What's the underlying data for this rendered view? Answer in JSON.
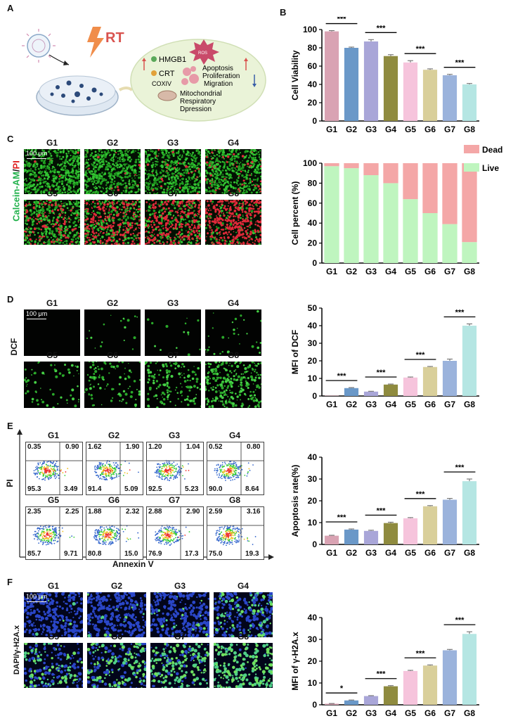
{
  "panels": {
    "A": "A",
    "B": "B",
    "C": "C",
    "D": "D",
    "E": "E",
    "F": "F"
  },
  "schematic": {
    "rt": "RT",
    "hmgb1": "HMGB1",
    "crt": "CRT",
    "coxiv": "COXIV",
    "ros": "ROS",
    "effects": [
      "Apoptosis",
      "Proliferation",
      "Migration"
    ],
    "mito": [
      "Mitochondrial",
      "Respiratory",
      "Dpression"
    ]
  },
  "groups": [
    "G1",
    "G2",
    "G3",
    "G4",
    "G5",
    "G6",
    "G7",
    "G8"
  ],
  "scale_bar": "100 μm",
  "stain_c": {
    "green": "Calcein-AM",
    "sep": "/",
    "red": "PI"
  },
  "stain_d": "DCF",
  "stain_f": "DAPI/γ-H2A.x",
  "flow": {
    "ylabel": "PI",
    "xlabel": "Annexin V",
    "quadrants": [
      [
        "0.35",
        "0.90",
        "95.3",
        "3.49"
      ],
      [
        "1.62",
        "1.90",
        "91.4",
        "5.09"
      ],
      [
        "1.20",
        "1.04",
        "92.5",
        "5.23"
      ],
      [
        "0.52",
        "0.80",
        "90.0",
        "8.64"
      ],
      [
        "2.35",
        "2.25",
        "85.7",
        "9.71"
      ],
      [
        "1.88",
        "2.32",
        "80.8",
        "15.0"
      ],
      [
        "2.88",
        "2.90",
        "76.9",
        "17.3"
      ],
      [
        "2.59",
        "3.16",
        "75.0",
        "19.3"
      ]
    ]
  },
  "colors": [
    "#d9a3b3",
    "#6a98c8",
    "#a9a6d8",
    "#8f8b3f",
    "#f6c4dc",
    "#d9cf9a",
    "#9bb3dc",
    "#b5e6e3"
  ],
  "sig": {
    "three": "***",
    "one": "*"
  },
  "chart_data": [
    {
      "id": "B",
      "type": "bar",
      "categories": [
        "G1",
        "G2",
        "G3",
        "G4",
        "G5",
        "G6",
        "G7",
        "G8"
      ],
      "values": [
        98,
        80,
        87,
        71,
        64,
        56,
        50,
        40
      ],
      "errors": [
        0.8,
        0.8,
        2,
        1.5,
        2,
        1,
        1,
        1
      ],
      "ylabel": "Cell Viability",
      "ylim": [
        0,
        100
      ],
      "yticks": [
        0,
        20,
        40,
        60,
        80,
        100
      ],
      "sig": [
        [
          0,
          1,
          "***"
        ],
        [
          2,
          3,
          "***"
        ],
        [
          4,
          5,
          "***"
        ],
        [
          6,
          7,
          "***"
        ]
      ]
    },
    {
      "id": "C",
      "type": "bar",
      "stacked": true,
      "categories": [
        "G1",
        "G2",
        "G3",
        "G4",
        "G5",
        "G6",
        "G7",
        "G8"
      ],
      "series": [
        {
          "name": "Live",
          "values": [
            97,
            95,
            88,
            80,
            64,
            50,
            39,
            21
          ]
        },
        {
          "name": "Dead",
          "values": [
            3,
            5,
            12,
            20,
            36,
            50,
            61,
            79
          ]
        }
      ],
      "ylabel": "Cell percent (%)",
      "ylim": [
        0,
        100
      ],
      "yticks": [
        0,
        20,
        40,
        60,
        80,
        100
      ],
      "series_colors": [
        "#bff5bf",
        "#f4a7a7"
      ]
    },
    {
      "id": "D",
      "type": "bar",
      "categories": [
        "G1",
        "G2",
        "G3",
        "G4",
        "G5",
        "G6",
        "G7",
        "G8"
      ],
      "values": [
        0.2,
        4.5,
        2.5,
        6.5,
        10.5,
        16.5,
        20,
        40
      ],
      "errors": [
        0,
        0.3,
        0.2,
        0.3,
        0.3,
        0.3,
        1,
        1
      ],
      "ylabel": "MFI of DCF",
      "ylim": [
        0,
        50
      ],
      "yticks": [
        0,
        10,
        20,
        30,
        40,
        50
      ],
      "sig": [
        [
          0,
          1,
          "***"
        ],
        [
          2,
          3,
          "***"
        ],
        [
          4,
          5,
          "***"
        ],
        [
          6,
          7,
          "***"
        ]
      ]
    },
    {
      "id": "E",
      "type": "bar",
      "categories": [
        "G1",
        "G2",
        "G3",
        "G4",
        "G5",
        "G6",
        "G7",
        "G8"
      ],
      "values": [
        4,
        6.8,
        6.2,
        9.8,
        12,
        17.5,
        20.5,
        29
      ],
      "errors": [
        0.2,
        0.3,
        0.3,
        0.4,
        0.3,
        0.3,
        0.6,
        1
      ],
      "ylabel": "Apoptosis rate(%)",
      "ylim": [
        0,
        40
      ],
      "yticks": [
        0,
        10,
        20,
        30,
        40
      ],
      "sig": [
        [
          0,
          1,
          "***"
        ],
        [
          2,
          3,
          "***"
        ],
        [
          4,
          5,
          "***"
        ],
        [
          6,
          7,
          "***"
        ]
      ]
    },
    {
      "id": "F",
      "type": "bar",
      "categories": [
        "G1",
        "G2",
        "G3",
        "G4",
        "G5",
        "G6",
        "G7",
        "G8"
      ],
      "values": [
        0.5,
        2,
        4,
        8.5,
        15.5,
        18,
        25,
        32.5
      ],
      "errors": [
        0.1,
        0.2,
        0.2,
        0.3,
        0.3,
        0.3,
        0.4,
        1
      ],
      "ylabel": "MFI of γ-H2A.x",
      "ylim": [
        0,
        40
      ],
      "yticks": [
        0,
        10,
        20,
        30,
        40
      ],
      "sig": [
        [
          0,
          1,
          "*"
        ],
        [
          2,
          3,
          "***"
        ],
        [
          4,
          5,
          "***"
        ],
        [
          6,
          7,
          "***"
        ]
      ]
    }
  ]
}
